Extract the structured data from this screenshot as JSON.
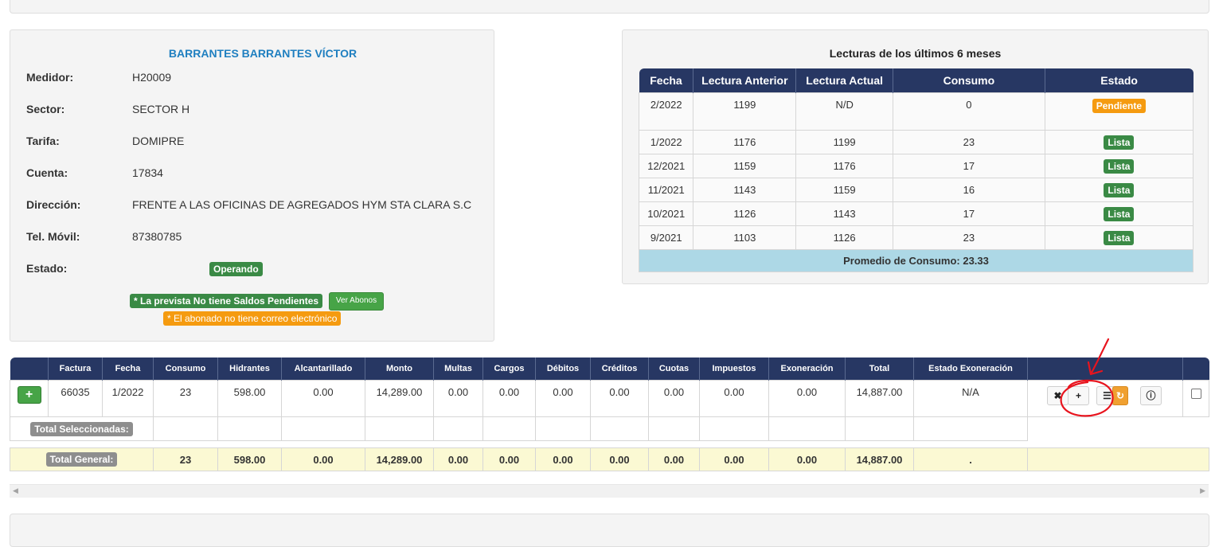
{
  "client": {
    "name": "BARRANTES BARRANTES VÍCTOR",
    "fields": [
      {
        "label": "Medidor:",
        "value": "H20009"
      },
      {
        "label": "Sector:",
        "value": "SECTOR H"
      },
      {
        "label": "Tarifa:",
        "value": "DOMIPRE"
      },
      {
        "label": "Cuenta:",
        "value": "17834"
      },
      {
        "label": "Dirección:",
        "value": "FRENTE A LAS OFICINAS DE AGREGADOS HYM STA CLARA S.C"
      },
      {
        "label": "Tel. Móvil:",
        "value": "87380785"
      }
    ],
    "estado_label": "Estado:",
    "estado_value": "Operando",
    "notice_balance": "* La prevista No tiene Saldos Pendientes",
    "ver_abonos": "Ver Abonos",
    "notice_email": "* El abonado no tiene correo electrónico"
  },
  "readings": {
    "title": "Lecturas de los últimos 6 meses",
    "headers": [
      "Fecha",
      "Lectura Anterior",
      "Lectura Actual",
      "Consumo",
      "Estado"
    ],
    "rows": [
      {
        "fecha": "2/2022",
        "anterior": "1199",
        "actual": "N/D",
        "consumo": "0",
        "estado": "Pendiente"
      },
      {
        "fecha": "1/2022",
        "anterior": "1176",
        "actual": "1199",
        "consumo": "23",
        "estado": "Lista"
      },
      {
        "fecha": "12/2021",
        "anterior": "1159",
        "actual": "1176",
        "consumo": "17",
        "estado": "Lista"
      },
      {
        "fecha": "11/2021",
        "anterior": "1143",
        "actual": "1159",
        "consumo": "16",
        "estado": "Lista"
      },
      {
        "fecha": "10/2021",
        "anterior": "1126",
        "actual": "1143",
        "consumo": "17",
        "estado": "Lista"
      },
      {
        "fecha": "9/2021",
        "anterior": "1103",
        "actual": "1126",
        "consumo": "23",
        "estado": "Lista"
      }
    ],
    "average": "Promedio de Consumo: 23.33"
  },
  "invoices": {
    "headers": [
      "",
      "Factura",
      "Fecha",
      "Consumo",
      "Hidrantes",
      "Alcantarillado",
      "Monto",
      "Multas",
      "Cargos",
      "Débitos",
      "Créditos",
      "Cuotas",
      "Impuestos",
      "Exoneración",
      "Total",
      "Estado Exoneración",
      "",
      ""
    ],
    "row": {
      "add_icon": "plus-icon",
      "factura": "66035",
      "fecha": "1/2022",
      "consumo": "23",
      "hidrantes": "598.00",
      "alcantarillado": "0.00",
      "monto": "14,289.00",
      "multas": "0.00",
      "cargos": "0.00",
      "debitos": "0.00",
      "creditos": "0.00",
      "cuotas": "0.00",
      "impuestos": "0.00",
      "exoneracion": "0.00",
      "total": "14,887.00",
      "estado_exoneracion": "N/A"
    },
    "total_seleccionadas": "Total Seleccionadas:",
    "total_general": {
      "label": "Total General:",
      "consumo": "23",
      "hidrantes": "598.00",
      "alcantarillado": "0.00",
      "monto": "14,289.00",
      "multas": "0.00",
      "cargos": "0.00",
      "debitos": "0.00",
      "creditos": "0.00",
      "cuotas": "0.00",
      "impuestos": "0.00",
      "exoneracion": "0.00",
      "total": "14,887.00",
      "estado_exoneracion": "."
    },
    "action_icons": [
      "close-icon",
      "plus-icon",
      "list-icon",
      "refresh-icon",
      "info-icon"
    ]
  },
  "colors": {
    "header_navy": "#273763",
    "green": "#3a8a45",
    "orange": "#f59b10",
    "light_blue": "#add8e6",
    "light_yellow": "#fbf9d3",
    "name_blue": "#1f7fc0",
    "annotation_red": "#e8141e"
  }
}
